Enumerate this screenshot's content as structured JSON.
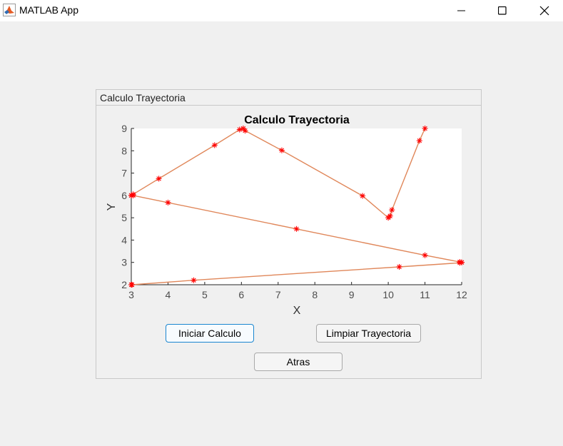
{
  "window": {
    "title": "MATLAB App",
    "icon": "matlab-icon",
    "controls": [
      "minimize-icon",
      "maximize-icon",
      "close-icon"
    ]
  },
  "panel": {
    "title": "Calculo Trayectoria"
  },
  "buttons": {
    "start": "Iniciar Calculo",
    "clear": "Limpiar Trayectoria",
    "back": "Atras"
  },
  "colors": {
    "line": "#e0875a",
    "marker": "#ff0000",
    "focus": "#1a86d0"
  },
  "chart_data": {
    "type": "line",
    "title": "Calculo Trayectoria",
    "xlabel": "X",
    "ylabel": "Y",
    "xlim": [
      3,
      12
    ],
    "ylim": [
      2,
      9
    ],
    "xticks": [
      3,
      4,
      5,
      6,
      7,
      8,
      9,
      10,
      11,
      12
    ],
    "yticks": [
      2,
      3,
      4,
      5,
      6,
      7,
      8,
      9
    ],
    "grid": false,
    "series": [
      {
        "x": [
          3,
          3.05,
          3.75,
          5.27,
          5.95,
          6.05,
          6.1,
          7.1,
          9.3,
          10.0,
          10.05,
          10.1,
          10.85,
          11.0
        ],
        "y": [
          6,
          6.05,
          6.75,
          8.25,
          8.95,
          9.0,
          8.9,
          8.02,
          5.98,
          5.0,
          5.08,
          5.35,
          8.45,
          9.0
        ]
      },
      {
        "x": [
          3,
          3.05,
          4.0,
          7.5,
          11.0,
          11.95,
          12.0
        ],
        "y": [
          6,
          6.0,
          5.68,
          4.5,
          3.32,
          3.02,
          3.0
        ]
      },
      {
        "x": [
          3,
          3.02,
          4.7,
          10.3,
          11.95,
          12.0
        ],
        "y": [
          2,
          2.0,
          2.2,
          2.8,
          2.98,
          3.0
        ]
      }
    ]
  }
}
